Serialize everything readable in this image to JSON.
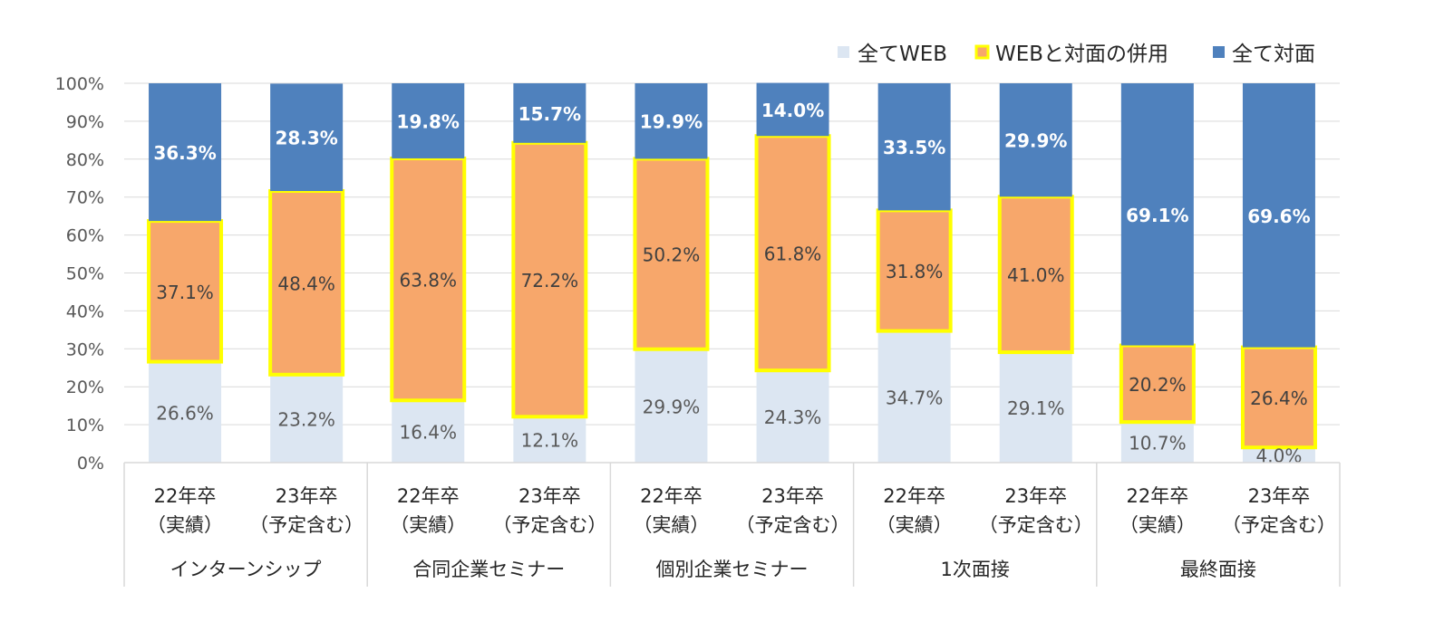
{
  "chart_data": {
    "type": "bar",
    "stacked": true,
    "percent": true,
    "title": "",
    "xlabel": "",
    "ylabel": "",
    "ylim": [
      0,
      100
    ],
    "yticks": [
      "0%",
      "10%",
      "20%",
      "30%",
      "40%",
      "50%",
      "60%",
      "70%",
      "80%",
      "90%",
      "100%"
    ],
    "grid": true,
    "legend_position": "top-right",
    "groups": [
      {
        "label": "インターンシップ"
      },
      {
        "label": "合同企業セミナー"
      },
      {
        "label": "個別企業セミナー"
      },
      {
        "label": "1次面接"
      },
      {
        "label": "最終面接"
      }
    ],
    "categories": [
      {
        "line1": "22年卒",
        "line2": "（実績）"
      },
      {
        "line1": "23年卒",
        "line2": "（予定含む）"
      },
      {
        "line1": "22年卒",
        "line2": "（実績）"
      },
      {
        "line1": "23年卒",
        "line2": "（予定含む）"
      },
      {
        "line1": "22年卒",
        "line2": "（実績）"
      },
      {
        "line1": "23年卒",
        "line2": "（予定含む）"
      },
      {
        "line1": "22年卒",
        "line2": "（実績）"
      },
      {
        "line1": "23年卒",
        "line2": "（予定含む）"
      },
      {
        "line1": "22年卒",
        "line2": "（実績）"
      },
      {
        "line1": "23年卒",
        "line2": "（予定含む）"
      }
    ],
    "series": [
      {
        "name": "全てWEB",
        "color": "#dce6f2",
        "label_color": "#595959",
        "values": [
          26.6,
          23.2,
          16.4,
          12.1,
          29.9,
          24.3,
          34.7,
          29.1,
          10.7,
          4.0
        ],
        "labels": [
          "26.6%",
          "23.2%",
          "16.4%",
          "12.1%",
          "29.9%",
          "24.3%",
          "34.7%",
          "29.1%",
          "10.7%",
          "4.0%"
        ]
      },
      {
        "name": "WEBと対面の併用",
        "color": "#f7a76b",
        "outline": "#ffff00",
        "label_color": "#404040",
        "values": [
          37.1,
          48.4,
          63.8,
          72.2,
          50.2,
          61.8,
          31.8,
          41.0,
          20.2,
          26.4
        ],
        "labels": [
          "37.1%",
          "48.4%",
          "63.8%",
          "72.2%",
          "50.2%",
          "61.8%",
          "31.8%",
          "41.0%",
          "20.2%",
          "26.4%"
        ]
      },
      {
        "name": "全て対面",
        "color": "#4f81bd",
        "label_color": "#ffffff",
        "values": [
          36.3,
          28.3,
          19.8,
          15.7,
          19.9,
          14.0,
          33.5,
          29.9,
          69.1,
          69.6
        ],
        "labels": [
          "36.3%",
          "28.3%",
          "19.8%",
          "15.7%",
          "19.9%",
          "14.0%",
          "33.5%",
          "29.9%",
          "69.1%",
          "69.6%"
        ]
      }
    ]
  }
}
